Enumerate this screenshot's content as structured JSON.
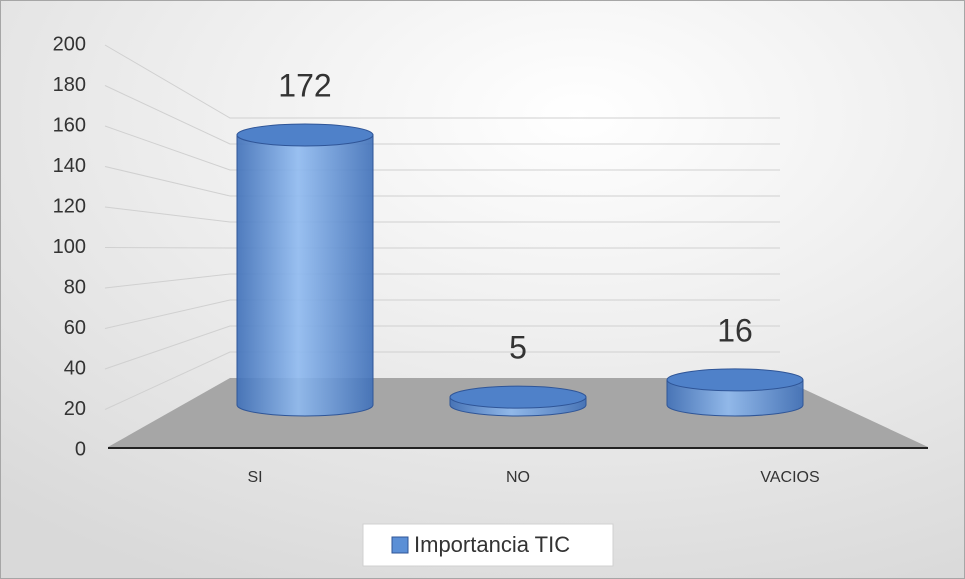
{
  "chart_data": {
    "type": "bar3d",
    "categories": [
      "SI",
      "NO",
      "VACIOS"
    ],
    "series": [
      {
        "name": "Importancia TIC",
        "color": "#5b8fd6",
        "values": [
          172,
          5,
          16
        ]
      }
    ],
    "ylim": [
      0,
      200
    ],
    "yticks": [
      0,
      20,
      40,
      60,
      80,
      100,
      120,
      140,
      160,
      180,
      200
    ],
    "grid": true,
    "legend": "bottom"
  }
}
